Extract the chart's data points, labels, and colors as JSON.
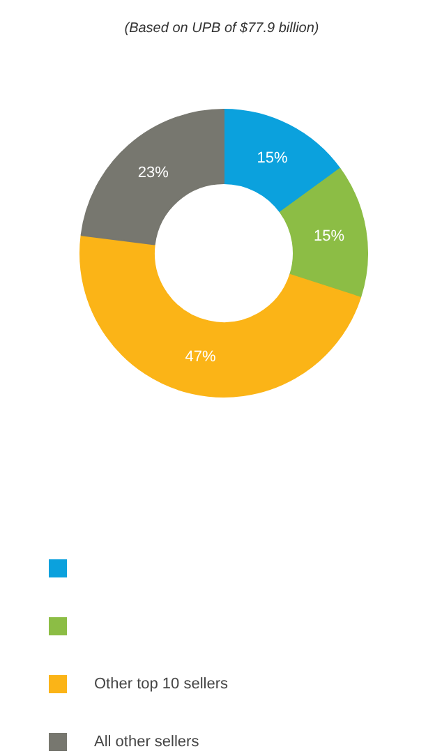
{
  "chart_data": {
    "type": "donut",
    "title": "(Based on UPB of $77.9 billion)",
    "categories": [
      null,
      null,
      "Other top 10 sellers",
      "All other sellers"
    ],
    "values": [
      15,
      15,
      47,
      23
    ],
    "value_labels": [
      "15%",
      "15%",
      "47%",
      "23%"
    ],
    "colors": [
      "#0ba1dd",
      "#8cbd45",
      "#fbb417",
      "#77776f"
    ],
    "legend": "bottom"
  }
}
